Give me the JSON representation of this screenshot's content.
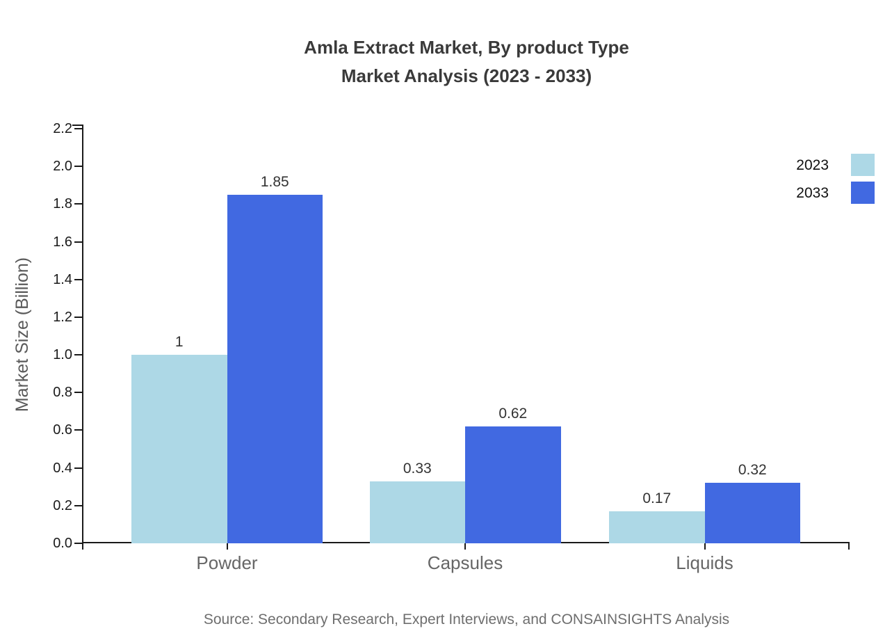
{
  "chart_data": {
    "type": "bar",
    "title_line1": "Amla Extract Market, By product Type",
    "title_line2": "Market Analysis (2023 - 2033)",
    "ylabel": "Market Size (Billion)",
    "xlabel": "",
    "categories": [
      "Powder",
      "Capsules",
      "Liquids"
    ],
    "series": [
      {
        "name": "2023",
        "color": "#ADD8E6",
        "values": [
          1,
          0.33,
          0.17
        ],
        "labels": [
          "1",
          "0.33",
          "0.17"
        ]
      },
      {
        "name": "2033",
        "color": "#4169E1",
        "values": [
          1.85,
          0.62,
          0.32
        ],
        "labels": [
          "1.85",
          "0.62",
          "0.32"
        ]
      }
    ],
    "ylim": [
      0,
      2.26
    ],
    "yticks": [
      "0.0",
      "0.2",
      "0.4",
      "0.6",
      "0.8",
      "1.0",
      "1.2",
      "1.4",
      "1.6",
      "1.8",
      "2.0",
      "2.2"
    ],
    "grid": false,
    "legend_position": "top-right"
  },
  "source_note": "Source: Secondary Research, Expert Interviews, and CONSAINSIGHTS Analysis",
  "colors": {
    "axis": "#1a1a1a",
    "title": "#3a3a3a",
    "value_label": "#333333",
    "category_label": "#666666",
    "ylabel": "#5a5a5a",
    "source": "#6e6e6e",
    "background": "#ffffff"
  }
}
